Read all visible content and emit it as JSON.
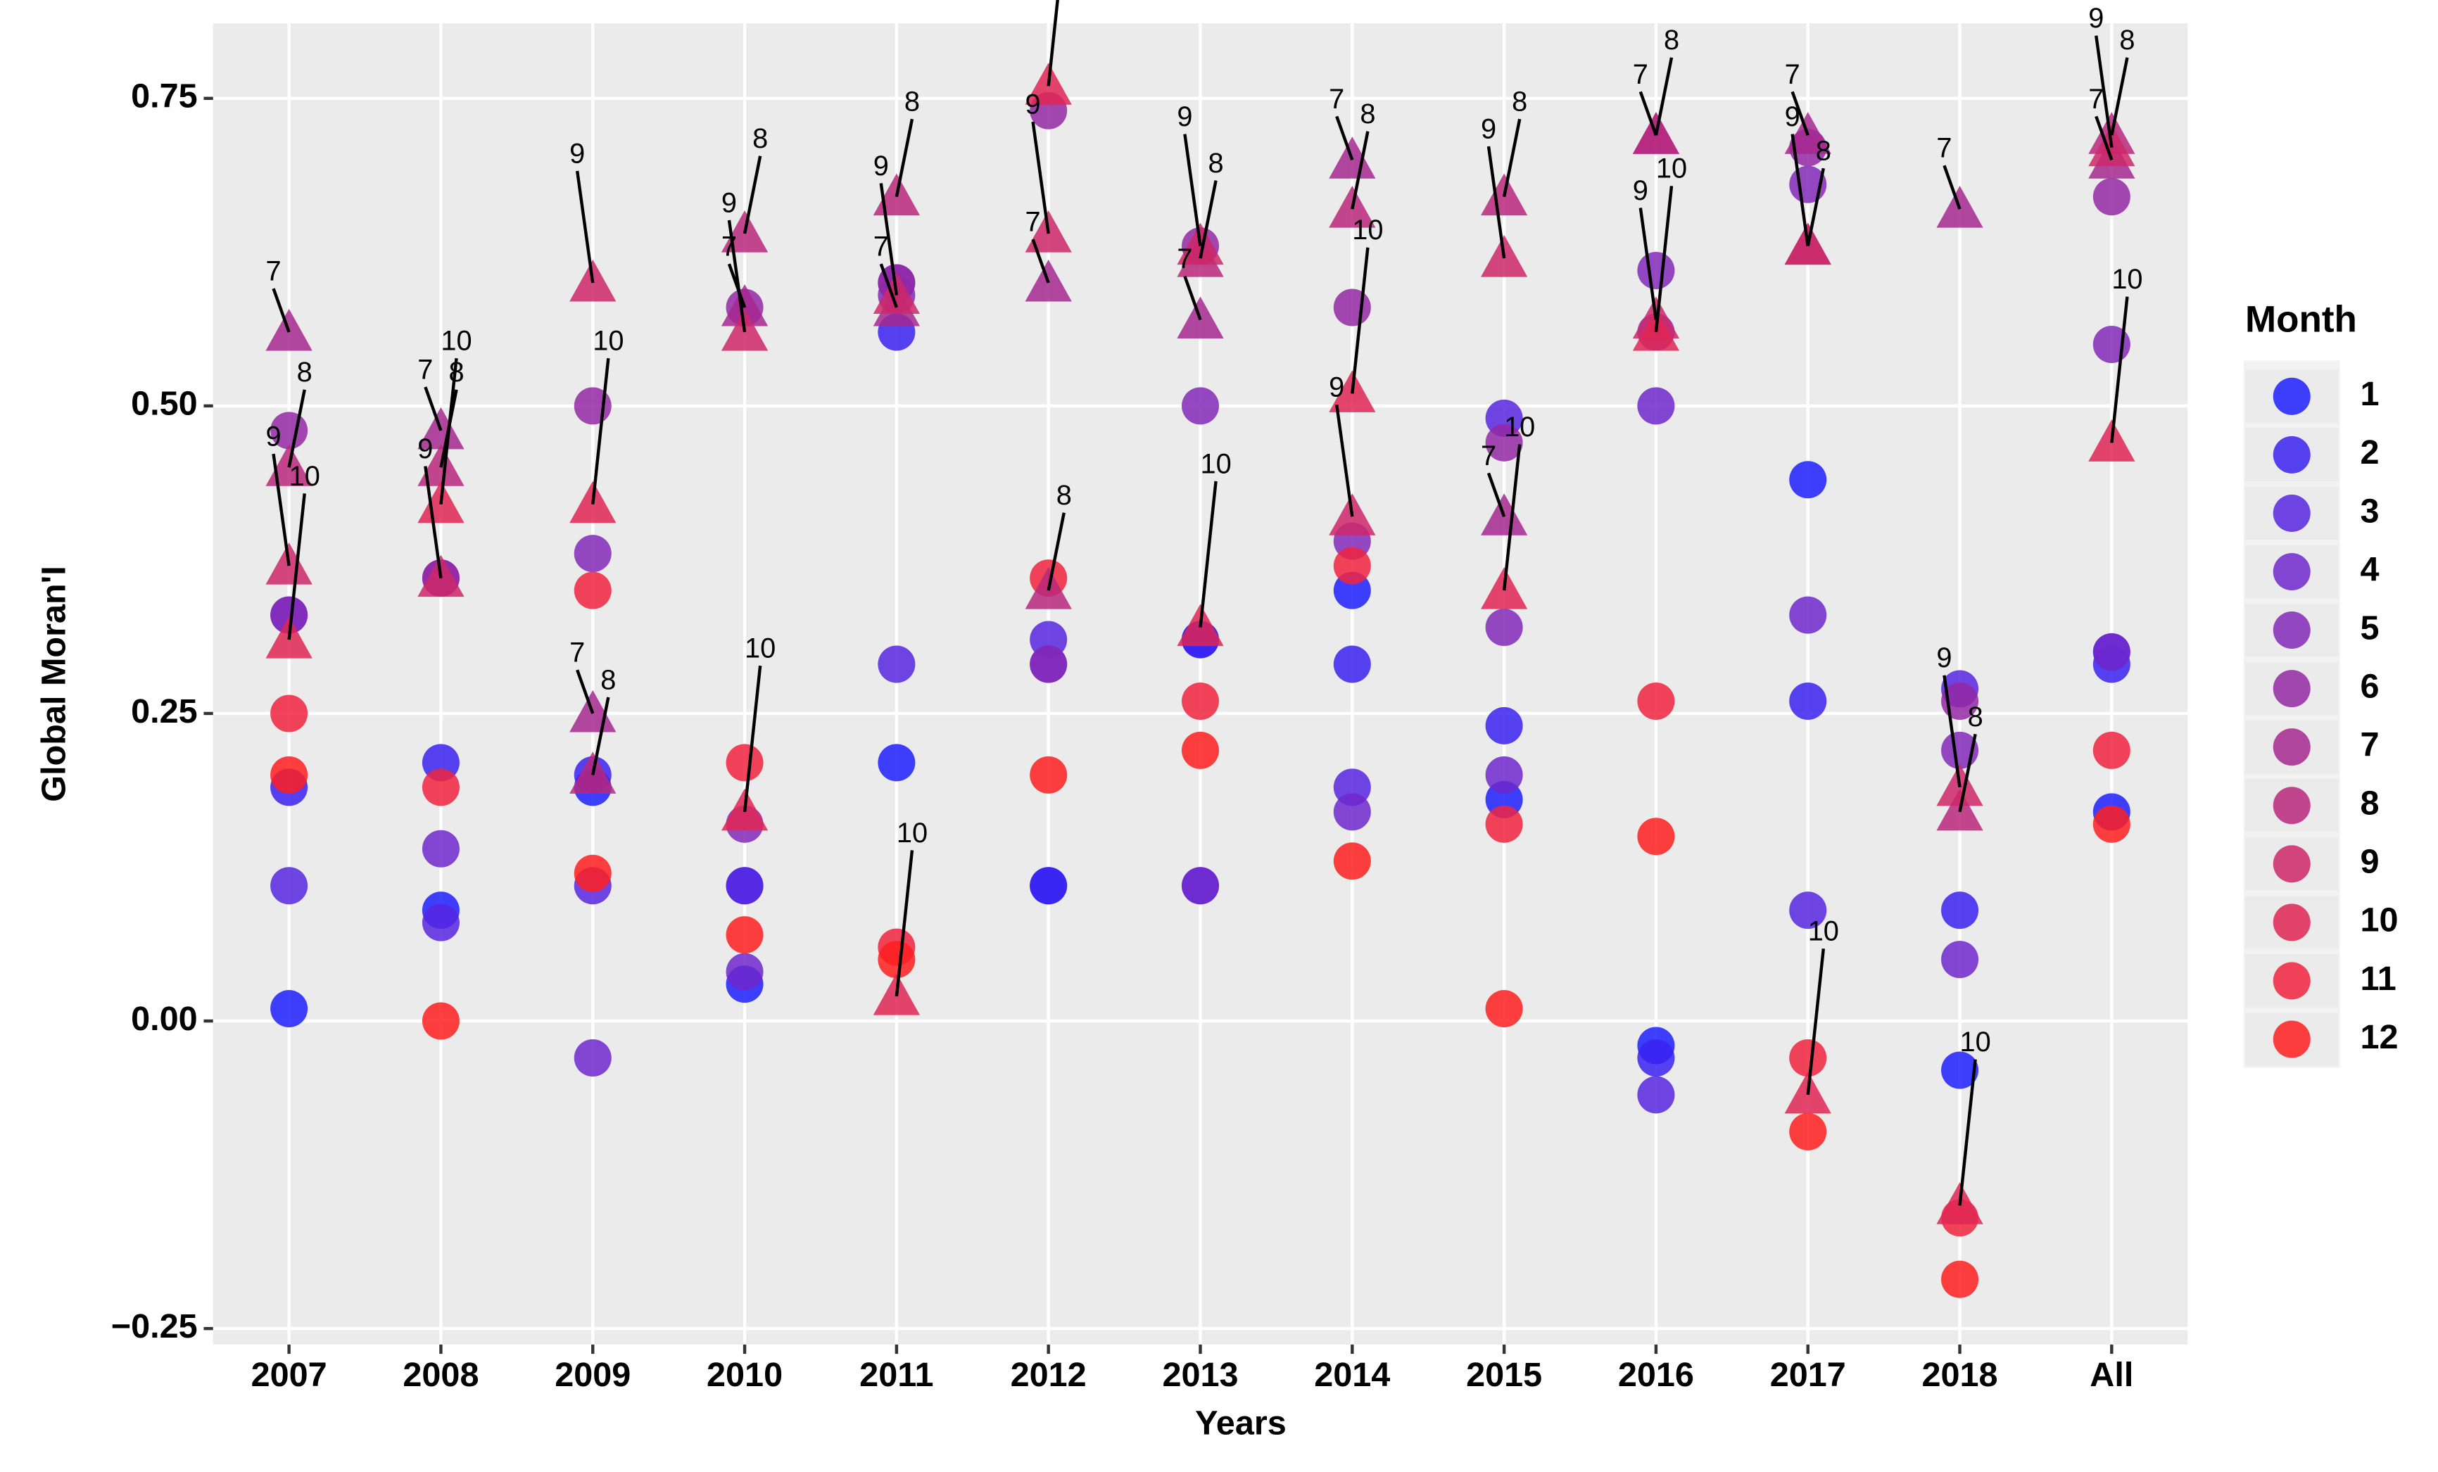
{
  "chart_data": {
    "type": "scatter",
    "x_label": "Years",
    "y_label": "Global Moran'I",
    "legend_title": "Month",
    "categories": [
      "2007",
      "2008",
      "2009",
      "2010",
      "2011",
      "2012",
      "2013",
      "2014",
      "2015",
      "2016",
      "2017",
      "2018",
      "All"
    ],
    "ylim": [
      -0.263,
      0.811
    ],
    "yticks": [
      {
        "value": -0.25,
        "label": "−0.25"
      },
      {
        "value": 0,
        "label": "0.00"
      },
      0.25,
      {
        "value": 0.5,
        "label": "0.50"
      },
      0.75
    ],
    "grid": true,
    "series": [
      {
        "name": "1",
        "color": "#1e1eff",
        "shape": "circle",
        "values": [
          0.01,
          0.09,
          0.19,
          0.03,
          0.21,
          0.11,
          0.31,
          0.35,
          0.18,
          -0.02,
          0.44,
          -0.04,
          0.17
        ]
      },
      {
        "name": "2",
        "color": "#3a22f0",
        "shape": "circle",
        "values": [
          0.19,
          0.21,
          0.2,
          0.11,
          0.56,
          0.11,
          0.31,
          0.29,
          0.24,
          -0.03,
          0.26,
          0.09,
          0.29
        ]
      },
      {
        "name": "3",
        "color": "#5726e0",
        "shape": "circle",
        "values": [
          0.11,
          0.08,
          0.11,
          0.11,
          0.29,
          0.31,
          0.11,
          0.19,
          0.49,
          -0.06,
          0.09,
          0.27,
          0.3
        ]
      },
      {
        "name": "4",
        "color": "#6e28cc",
        "shape": "circle",
        "values": [
          0.33,
          0.14,
          -0.03,
          0.04,
          0.6,
          0.29,
          0.11,
          0.17,
          0.2,
          0.5,
          0.33,
          0.05,
          0.3
        ]
      },
      {
        "name": "5",
        "color": "#8229b8",
        "shape": "circle",
        "values": [
          0.33,
          0.36,
          0.38,
          0.16,
          0.59,
          0.29,
          0.5,
          0.39,
          0.32,
          0.61,
          0.68,
          0.22,
          0.55
        ]
      },
      {
        "name": "6",
        "color": "#9428a4",
        "shape": "circle",
        "values": [
          0.48,
          0.36,
          0.5,
          0.58,
          0.6,
          0.74,
          0.63,
          0.58,
          0.47,
          0.56,
          0.71,
          0.26,
          0.67
        ]
      },
      {
        "name": "7",
        "color": "#a62890",
        "shape": "triangle",
        "values": [
          0.56,
          0.48,
          0.25,
          0.58,
          0.58,
          0.6,
          0.57,
          0.7,
          0.41,
          0.72,
          0.72,
          0.66,
          0.7
        ]
      },
      {
        "name": "8",
        "color": "#b8287c",
        "shape": "triangle",
        "values": [
          0.45,
          0.45,
          0.2,
          0.64,
          0.67,
          0.35,
          0.62,
          0.66,
          0.67,
          0.72,
          0.63,
          0.17,
          0.72
        ]
      },
      {
        "name": "9",
        "color": "#cc2868",
        "shape": "triangle",
        "values": [
          0.37,
          0.36,
          0.6,
          0.56,
          0.59,
          0.64,
          0.63,
          0.41,
          0.62,
          0.57,
          0.63,
          0.19,
          0.71
        ]
      },
      {
        "name": "10",
        "color": "#e02654",
        "shape": "triangle",
        "values": [
          0.31,
          0.42,
          0.42,
          0.17,
          0.02,
          0.76,
          0.32,
          0.51,
          0.35,
          0.56,
          -0.06,
          -0.15,
          0.47
        ]
      },
      {
        "name": "11",
        "color": "#f02440",
        "shape": "circle",
        "values": [
          0.25,
          0.19,
          0.35,
          0.21,
          0.06,
          0.36,
          0.26,
          0.37,
          0.16,
          0.26,
          -0.03,
          -0.16,
          0.22
        ]
      },
      {
        "name": "12",
        "color": "#ff1e1e",
        "shape": "circle",
        "values": [
          0.2,
          0.0,
          0.12,
          0.07,
          0.05,
          0.2,
          0.22,
          0.13,
          0.01,
          0.15,
          -0.09,
          -0.21,
          0.16
        ]
      }
    ]
  }
}
